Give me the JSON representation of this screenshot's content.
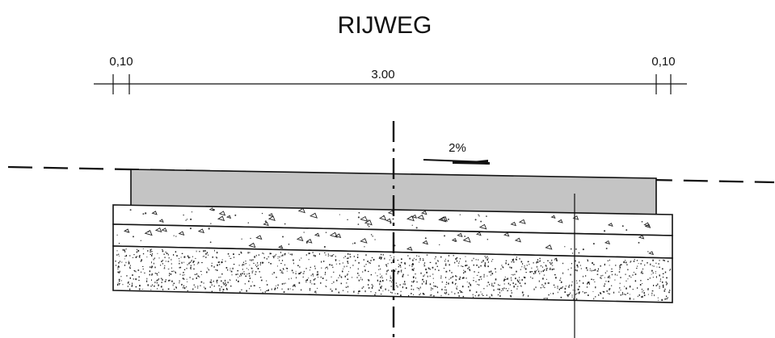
{
  "title": "RIJWEG",
  "dimensions": {
    "left_curb": "0,10",
    "road_width": "3.00",
    "right_curb": "0,10"
  },
  "slope_label": "2%",
  "colors": {
    "asphalt": "#c4c4c4",
    "line": "#111111",
    "background": "#ffffff"
  }
}
